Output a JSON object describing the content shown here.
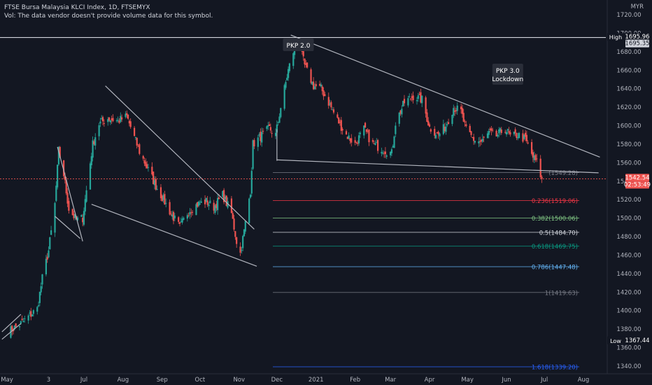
{
  "header": {
    "title": "FTSE Bursa Malaysia KLCI Index, 1D, FTSEMYX",
    "volume_note": "Vol: The data vendor doesn't provide volume data for this symbol."
  },
  "currency": "MYR",
  "colors": {
    "background": "#131722",
    "up": "#26a69a",
    "down": "#ef5350",
    "line": "#b2b5be",
    "axis_text": "#b2b5be"
  },
  "price_labels": {
    "high_label": "High",
    "high_value": "1695.96",
    "high_line_value": "1695.35",
    "last_value": "1542.54",
    "countdown": "02:53:49",
    "low_label": "Low",
    "low_value": "1367.44"
  },
  "annotations": [
    {
      "label": "PKP 2.0",
      "date": "2020-12-18",
      "price": 1686
    },
    {
      "label": "PKP 3.0\nLockdown",
      "date": "2021-06-02",
      "price": 1651
    }
  ],
  "chart_data": {
    "type": "candlestick",
    "title": "FTSE Bursa Malaysia KLCI Index, 1D, FTSEMYX",
    "xlabel": "",
    "ylabel": "",
    "ylim": [
      1332,
      1728
    ],
    "y_ticks": [
      1340,
      1360,
      1380,
      1400,
      1420,
      1440,
      1460,
      1480,
      1500,
      1520,
      1540,
      1560,
      1580,
      1600,
      1620,
      1640,
      1660,
      1680,
      1700,
      1720
    ],
    "x_ticks": [
      {
        "label": "May",
        "date": "2020-05-01"
      },
      {
        "label": "3",
        "date": "2020-06-03"
      },
      {
        "label": "Jul",
        "date": "2020-07-01"
      },
      {
        "label": "Aug",
        "date": "2020-08-01"
      },
      {
        "label": "Sep",
        "date": "2020-09-01"
      },
      {
        "label": "Oct",
        "date": "2020-10-01"
      },
      {
        "label": "Nov",
        "date": "2020-11-01"
      },
      {
        "label": "Dec",
        "date": "2020-12-01"
      },
      {
        "label": "2021",
        "date": "2021-01-01"
      },
      {
        "label": "Feb",
        "date": "2021-02-01"
      },
      {
        "label": "Mar",
        "date": "2021-03-01"
      },
      {
        "label": "Apr",
        "date": "2021-04-01"
      },
      {
        "label": "May",
        "date": "2021-05-01"
      },
      {
        "label": "Jun",
        "date": "2021-06-01"
      },
      {
        "label": "Jul",
        "date": "2021-07-01"
      },
      {
        "label": "Aug",
        "date": "2021-08-01"
      }
    ],
    "close_path": [
      [
        "2020-05-01",
        1376
      ],
      [
        "2020-05-12",
        1386
      ],
      [
        "2020-05-25",
        1402
      ],
      [
        "2020-05-29",
        1435
      ],
      [
        "2020-06-03",
        1465
      ],
      [
        "2020-06-08",
        1515
      ],
      [
        "2020-06-11",
        1573
      ],
      [
        "2020-06-15",
        1547
      ],
      [
        "2020-06-19",
        1510
      ],
      [
        "2020-06-25",
        1498
      ],
      [
        "2020-06-30",
        1500
      ],
      [
        "2020-07-03",
        1530
      ],
      [
        "2020-07-08",
        1580
      ],
      [
        "2020-07-13",
        1602
      ],
      [
        "2020-07-20",
        1608
      ],
      [
        "2020-07-28",
        1605
      ],
      [
        "2020-08-04",
        1610
      ],
      [
        "2020-08-10",
        1587
      ],
      [
        "2020-08-14",
        1572
      ],
      [
        "2020-08-20",
        1555
      ],
      [
        "2020-08-27",
        1535
      ],
      [
        "2020-09-02",
        1520
      ],
      [
        "2020-09-08",
        1505
      ],
      [
        "2020-09-15",
        1490
      ],
      [
        "2020-09-22",
        1508
      ],
      [
        "2020-09-29",
        1515
      ],
      [
        "2020-10-06",
        1518
      ],
      [
        "2020-10-12",
        1512
      ],
      [
        "2020-10-19",
        1525
      ],
      [
        "2020-10-26",
        1505
      ],
      [
        "2020-10-30",
        1475
      ],
      [
        "2020-11-02",
        1462
      ],
      [
        "2020-11-05",
        1486
      ],
      [
        "2020-11-10",
        1530
      ],
      [
        "2020-11-12",
        1580
      ],
      [
        "2020-11-18",
        1588
      ],
      [
        "2020-11-25",
        1597
      ],
      [
        "2020-11-30",
        1590
      ],
      [
        "2020-12-04",
        1620
      ],
      [
        "2020-12-10",
        1660
      ],
      [
        "2020-12-16",
        1690
      ],
      [
        "2020-12-18",
        1690
      ],
      [
        "2020-12-23",
        1665
      ],
      [
        "2020-12-30",
        1643
      ],
      [
        "2021-01-05",
        1640
      ],
      [
        "2021-01-11",
        1625
      ],
      [
        "2021-01-18",
        1606
      ],
      [
        "2021-01-25",
        1590
      ],
      [
        "2021-02-01",
        1580
      ],
      [
        "2021-02-08",
        1596
      ],
      [
        "2021-02-15",
        1580
      ],
      [
        "2021-02-24",
        1574
      ],
      [
        "2021-03-02",
        1570
      ],
      [
        "2021-03-05",
        1603
      ],
      [
        "2021-03-12",
        1625
      ],
      [
        "2021-03-19",
        1632
      ],
      [
        "2021-03-26",
        1628
      ],
      [
        "2021-04-01",
        1598
      ],
      [
        "2021-04-08",
        1590
      ],
      [
        "2021-04-14",
        1600
      ],
      [
        "2021-04-20",
        1620
      ],
      [
        "2021-04-26",
        1615
      ],
      [
        "2021-04-30",
        1595
      ],
      [
        "2021-05-06",
        1585
      ],
      [
        "2021-05-12",
        1582
      ],
      [
        "2021-05-18",
        1592
      ],
      [
        "2021-05-24",
        1589
      ],
      [
        "2021-05-31",
        1597
      ],
      [
        "2021-06-04",
        1588
      ],
      [
        "2021-06-10",
        1590
      ],
      [
        "2021-06-16",
        1585
      ],
      [
        "2021-06-22",
        1566
      ],
      [
        "2021-06-25",
        1560
      ],
      [
        "2021-06-29",
        1542
      ]
    ],
    "overlays": {
      "trendlines": [
        {
          "from": [
            "2020-04-27",
            1377
          ],
          "to": [
            "2020-05-12",
            1396
          ]
        },
        {
          "from": [
            "2020-04-27",
            1369
          ],
          "to": [
            "2020-05-12",
            1386
          ]
        },
        {
          "from": [
            "2020-06-10",
            1577
          ],
          "to": [
            "2020-06-30",
            1475
          ]
        },
        {
          "from": [
            "2020-06-08",
            1502
          ],
          "to": [
            "2020-06-28",
            1478
          ]
        },
        {
          "from": [
            "2020-07-18",
            1643
          ],
          "to": [
            "2020-11-13",
            1488
          ]
        },
        {
          "from": [
            "2020-07-07",
            1515
          ],
          "to": [
            "2020-11-15",
            1448
          ]
        },
        {
          "from": [
            "2020-12-12",
            1698
          ],
          "to": [
            "2021-08-14",
            1566
          ]
        },
        {
          "from": [
            "2020-12-01",
            1563
          ],
          "to": [
            "2021-08-13",
            1549
          ]
        }
      ],
      "vertical_segment": {
        "date": "2020-12-01",
        "from": 1562,
        "to": 1596
      },
      "top_line_price": 1695.35
    },
    "fibonacci": [
      {
        "level": "0",
        "price": 1549.28,
        "color": "#787b86",
        "label": "(1549.28)"
      },
      {
        "level": "0.236",
        "price": 1519.06,
        "color": "#f23645",
        "label": "0.236(1519.06)"
      },
      {
        "level": "0.382",
        "price": 1500.06,
        "color": "#81c784",
        "label": "0.382(1500.06)"
      },
      {
        "level": "0.5",
        "price": 1484.7,
        "color": "#d1d4dc",
        "label": "0.5(1484.70)"
      },
      {
        "level": "0.618",
        "price": 1469.75,
        "color": "#089981",
        "label": "0.618(1469.75)"
      },
      {
        "level": "0.786",
        "price": 1447.48,
        "color": "#64b5f6",
        "label": "0.786(1447.48)"
      },
      {
        "level": "1",
        "price": 1419.63,
        "color": "#787b86",
        "label": "1(1419.63)"
      },
      {
        "level": "1.618",
        "price": 1339.2,
        "color": "#2962ff",
        "label": "1.618(1339.20)"
      }
    ]
  }
}
